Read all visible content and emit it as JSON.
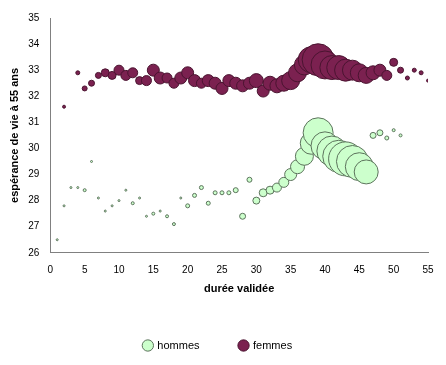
{
  "chart_data": {
    "type": "bubble",
    "x_label": "durée validée",
    "y_label": "espérance de vie à 55 ans",
    "xlim": [
      0,
      55
    ],
    "xticks": [
      0,
      5,
      10,
      15,
      20,
      25,
      30,
      35,
      40,
      45,
      50,
      55
    ],
    "ylim": [
      26,
      35
    ],
    "yticks": [
      26,
      27,
      28,
      29,
      30,
      31,
      32,
      33,
      34,
      35
    ],
    "grid": false,
    "legend": "bottom",
    "series": [
      {
        "name": "hommes",
        "color": "#ccffcc",
        "x": [
          1,
          2,
          3,
          4,
          5,
          6,
          7,
          8,
          9,
          10,
          11,
          12,
          13,
          14,
          15,
          16,
          17,
          18,
          19,
          20,
          21,
          22,
          23,
          24,
          25,
          26,
          27,
          28,
          29,
          30,
          31,
          32,
          33,
          34,
          35,
          36,
          37,
          38,
          39,
          40,
          41,
          42,
          43,
          44,
          45,
          46,
          47,
          48,
          49,
          50,
          51
        ],
        "values": [
          26.5,
          27.8,
          28.5,
          28.5,
          28.4,
          29.5,
          28.1,
          27.6,
          27.8,
          28.0,
          28.4,
          27.9,
          28.1,
          27.4,
          27.5,
          27.6,
          27.4,
          27.1,
          28.1,
          27.8,
          28.2,
          28.5,
          27.9,
          28.3,
          28.3,
          28.3,
          28.4,
          27.4,
          28.8,
          28.0,
          28.3,
          28.4,
          28.5,
          28.7,
          29.0,
          29.3,
          29.7,
          30.2,
          30.6,
          30.1,
          29.9,
          29.7,
          29.6,
          29.5,
          29.3,
          29.1,
          30.5,
          30.6,
          30.4,
          30.7,
          30.5
        ],
        "sizes": [
          1,
          1,
          1,
          1,
          1.5,
          1,
          1,
          1,
          1,
          1,
          1,
          1.5,
          1,
          1,
          1.5,
          1,
          1.5,
          1.5,
          1,
          2,
          2,
          2,
          2,
          2,
          2,
          2,
          2.5,
          3,
          2.5,
          3.5,
          4,
          4,
          4.5,
          5,
          6,
          7,
          9,
          11,
          15,
          14,
          15,
          16,
          17,
          16,
          14,
          12,
          3,
          3,
          2,
          1.5,
          1.5
        ]
      },
      {
        "name": "femmes",
        "color": "#7b2150",
        "x": [
          2,
          4,
          5,
          6,
          7,
          8,
          9,
          10,
          11,
          12,
          13,
          14,
          15,
          16,
          17,
          18,
          19,
          20,
          21,
          22,
          23,
          24,
          25,
          26,
          27,
          28,
          29,
          30,
          31,
          32,
          33,
          34,
          35,
          36,
          37,
          38,
          39,
          40,
          41,
          42,
          43,
          44,
          45,
          46,
          47,
          48,
          49,
          50,
          51,
          52,
          53,
          54,
          55
        ],
        "values": [
          31.6,
          32.9,
          32.3,
          32.5,
          32.8,
          32.9,
          32.8,
          33.0,
          32.8,
          32.9,
          32.6,
          32.6,
          33.0,
          32.7,
          32.7,
          32.5,
          32.7,
          32.9,
          32.6,
          32.5,
          32.6,
          32.5,
          32.3,
          32.6,
          32.5,
          32.4,
          32.5,
          32.6,
          32.2,
          32.5,
          32.4,
          32.5,
          32.6,
          32.9,
          33.2,
          33.4,
          33.4,
          33.2,
          33.1,
          33.1,
          33.0,
          33.0,
          32.9,
          32.8,
          32.9,
          33.0,
          32.8,
          33.3,
          33.0,
          32.7,
          33.0,
          32.9,
          32.6
        ],
        "sizes": [
          1.5,
          2,
          2.5,
          3,
          3,
          4,
          4,
          5,
          5,
          5,
          4,
          5,
          6,
          6,
          5,
          5,
          6,
          6,
          6,
          5,
          6,
          6,
          6,
          6,
          6,
          6,
          6,
          7,
          6,
          7,
          7,
          8,
          9,
          9,
          10,
          13,
          16,
          14,
          12,
          12,
          11,
          10,
          9,
          8,
          7,
          6,
          5,
          4,
          3,
          2,
          2,
          2,
          1.5
        ]
      }
    ]
  }
}
